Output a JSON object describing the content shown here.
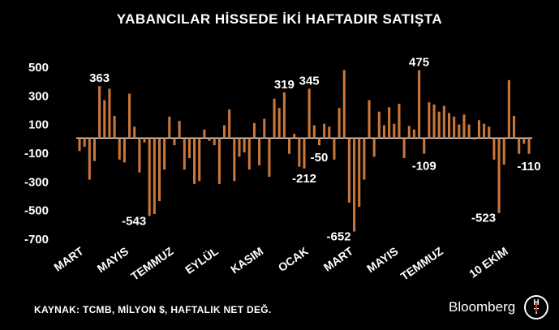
{
  "title": "YABANCILAR HİSSEDE İKİ HAFTADIR SATIŞTA",
  "source": "KAYNAK: TCMB, MİLYON $, HAFTALIK NET DEĞ.",
  "brand": "Bloomberg",
  "logo_text": [
    "H",
    "T"
  ],
  "colors": {
    "bar": "#c9763a",
    "background": "#000000",
    "text": "#ffffff"
  },
  "chart_data": {
    "type": "bar",
    "title": "YABANCILAR HİSSEDE İKİ HAFTADIR SATIŞTA",
    "ylim": [
      -700,
      500
    ],
    "yticks": [
      500,
      300,
      100,
      -100,
      -300,
      -500,
      -700
    ],
    "grid": false,
    "x_labels": [
      {
        "label": "MART",
        "index": 0
      },
      {
        "label": "MAYIS",
        "index": 9
      },
      {
        "label": "TEMMUZ",
        "index": 18
      },
      {
        "label": "EYLÜL",
        "index": 27
      },
      {
        "label": "KASIM",
        "index": 36
      },
      {
        "label": "OCAK",
        "index": 45
      },
      {
        "label": "MART",
        "index": 54
      },
      {
        "label": "MAYIS",
        "index": 63
      },
      {
        "label": "TEMMUZ",
        "index": 72
      },
      {
        "label": "10 EKİM",
        "index": 85
      }
    ],
    "values": [
      -90,
      -60,
      -290,
      -160,
      363,
      265,
      345,
      155,
      -150,
      -170,
      310,
      80,
      -240,
      -30,
      -543,
      -530,
      -440,
      -220,
      150,
      -50,
      120,
      -220,
      -140,
      -320,
      -300,
      60,
      -20,
      -50,
      -320,
      90,
      200,
      -300,
      -130,
      -100,
      -220,
      105,
      -190,
      135,
      -270,
      275,
      210,
      319,
      -110,
      30,
      -200,
      -212,
      345,
      90,
      -50,
      100,
      80,
      -150,
      210,
      475,
      -450,
      -652,
      -480,
      -290,
      265,
      -130,
      185,
      90,
      215,
      100,
      240,
      -140,
      85,
      60,
      475,
      -109,
      250,
      235,
      185,
      225,
      175,
      150,
      95,
      165,
      95,
      -10,
      125,
      100,
      80,
      -150,
      -523,
      -185,
      405,
      155,
      -110,
      -40,
      -110
    ],
    "annotations": [
      {
        "text": "363",
        "index": 4,
        "value": 363
      },
      {
        "text": "-543",
        "index": 14,
        "value": -543
      },
      {
        "text": "319",
        "index": 41,
        "value": 319
      },
      {
        "text": "-212",
        "index": 45,
        "value": -212
      },
      {
        "text": "345",
        "index": 46,
        "value": 345
      },
      {
        "text": "-50",
        "index": 48,
        "value": -50
      },
      {
        "text": "-652",
        "index": 55,
        "value": -652
      },
      {
        "text": "475",
        "index": 68,
        "value": 475
      },
      {
        "text": "-109",
        "index": 69,
        "value": -109
      },
      {
        "text": "-523",
        "index": 84,
        "value": -523
      },
      {
        "text": "-110",
        "index": 90,
        "value": -110
      }
    ]
  }
}
